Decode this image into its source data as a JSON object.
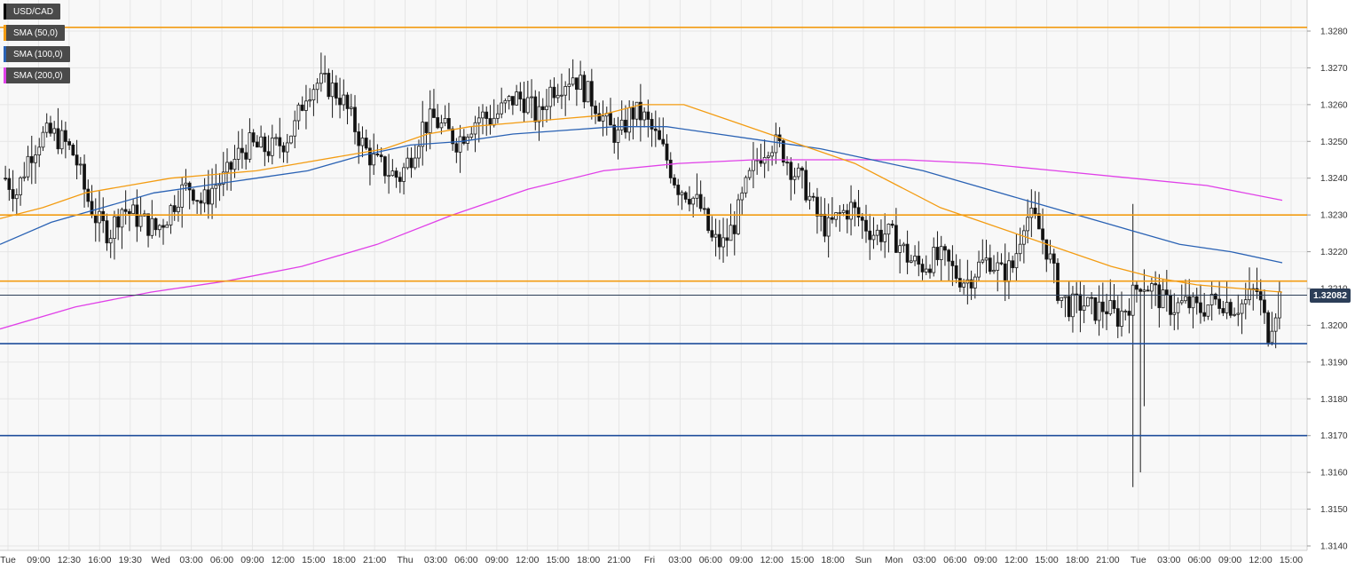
{
  "chart_data": {
    "type": "candlestick",
    "symbol": "USD/CAD",
    "legend": [
      {
        "label": "USD/CAD",
        "color": "#000000"
      },
      {
        "label": "SMA (50,0)",
        "color": "#f39c12"
      },
      {
        "label": "SMA (100,0)",
        "color": "#2a62b4"
      },
      {
        "label": "SMA (200,0)",
        "color": "#e040e8"
      }
    ],
    "current_price": "1.32082",
    "ylim": [
      1.314,
      1.3285
    ],
    "y_ticks": [
      "1.3280",
      "1.3270",
      "1.3260",
      "1.3250",
      "1.3240",
      "1.3230",
      "1.3220",
      "1.3210",
      "1.3200",
      "1.3190",
      "1.3180",
      "1.3170",
      "1.3160",
      "1.3150",
      "1.3140"
    ],
    "x_ticks": [
      "Tue",
      "09:00",
      "12:30",
      "16:00",
      "19:30",
      "Wed",
      "03:00",
      "06:00",
      "09:00",
      "12:00",
      "15:00",
      "18:00",
      "21:00",
      "Thu",
      "03:00",
      "06:00",
      "09:00",
      "12:00",
      "15:00",
      "18:00",
      "21:00",
      "Fri",
      "03:00",
      "06:00",
      "09:00",
      "12:00",
      "15:00",
      "18:00",
      "Sun",
      "Mon",
      "03:00",
      "06:00",
      "09:00",
      "12:00",
      "15:00",
      "18:00",
      "21:00",
      "Tue",
      "03:00",
      "06:00",
      "09:00",
      "12:00",
      "15:00"
    ],
    "horizontal_levels": [
      {
        "value": 1.3281,
        "color": "#f39c12"
      },
      {
        "value": 1.323,
        "color": "#f39c12"
      },
      {
        "value": 1.3212,
        "color": "#f39c12"
      },
      {
        "value": 1.3195,
        "color": "#1f4e9c"
      },
      {
        "value": 1.317,
        "color": "#1f4e9c"
      }
    ],
    "close_path": [
      1.324,
      1.3236,
      1.3246,
      1.3251,
      1.3252,
      1.325,
      1.3246,
      1.3235,
      1.3228,
      1.3225,
      1.3232,
      1.323,
      1.3228,
      1.3226,
      1.323,
      1.3236,
      1.3238,
      1.3233,
      1.3238,
      1.324,
      1.3246,
      1.3249,
      1.3248,
      1.3248,
      1.325,
      1.3254,
      1.3264,
      1.3266,
      1.3265,
      1.3262,
      1.3255,
      1.3248,
      1.3244,
      1.3242,
      1.324,
      1.3246,
      1.3254,
      1.3256,
      1.3253,
      1.325,
      1.3254,
      1.3257,
      1.3256,
      1.3259,
      1.3262,
      1.3261,
      1.3256,
      1.3264,
      1.3266,
      1.3268,
      1.3264,
      1.326,
      1.3254,
      1.3251,
      1.3258,
      1.3257,
      1.3252,
      1.3246,
      1.3238,
      1.3236,
      1.3232,
      1.3223,
      1.3222,
      1.3228,
      1.3238,
      1.3246,
      1.325,
      1.3248,
      1.3242,
      1.3238,
      1.323,
      1.3226,
      1.323,
      1.3232,
      1.3228,
      1.3225,
      1.3225,
      1.3223,
      1.3218,
      1.3216,
      1.3218,
      1.3218,
      1.3214,
      1.3212,
      1.3216,
      1.3218,
      1.3214,
      1.3216,
      1.323,
      1.3228,
      1.322,
      1.3208,
      1.3205,
      1.3206,
      1.3204,
      1.3205,
      1.3202,
      1.3206,
      1.3212,
      1.321,
      1.3206,
      1.3205,
      1.3206,
      1.3204,
      1.3206,
      1.3207,
      1.3205,
      1.3206,
      1.321,
      1.3198,
      1.3208
    ],
    "sma50": [
      1.3229,
      1.3232,
      1.3236,
      1.3238,
      1.324,
      1.3241,
      1.3242,
      1.3244,
      1.3246,
      1.3248,
      1.3252,
      1.3254,
      1.3255,
      1.3256,
      1.3257,
      1.326,
      1.326,
      1.3256,
      1.3252,
      1.3248,
      1.3244,
      1.3238,
      1.3232,
      1.3228,
      1.3224,
      1.322,
      1.3216,
      1.3213,
      1.3211,
      1.321,
      1.3209
    ],
    "sma100": [
      1.3222,
      1.3228,
      1.3232,
      1.3236,
      1.3238,
      1.324,
      1.3242,
      1.3246,
      1.3249,
      1.325,
      1.3252,
      1.3253,
      1.3254,
      1.3254,
      1.3252,
      1.325,
      1.3248,
      1.3245,
      1.3242,
      1.3238,
      1.3234,
      1.323,
      1.3226,
      1.3222,
      1.322,
      1.3217
    ],
    "sma200": [
      1.3199,
      1.3205,
      1.3209,
      1.3212,
      1.3216,
      1.3222,
      1.323,
      1.3237,
      1.3242,
      1.3244,
      1.3245,
      1.3245,
      1.3245,
      1.3244,
      1.3242,
      1.324,
      1.3238,
      1.3234
    ]
  }
}
